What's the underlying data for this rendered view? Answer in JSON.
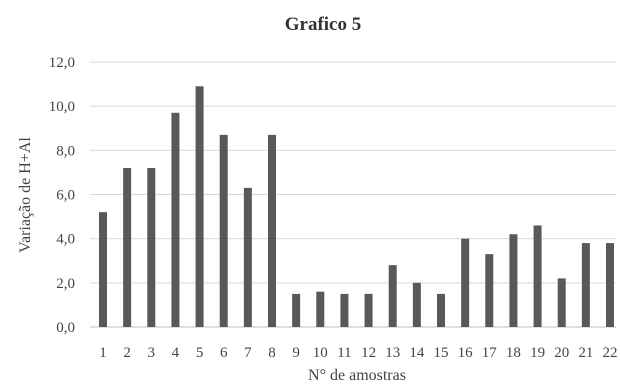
{
  "chart_data": {
    "type": "bar",
    "title": "Grafico 5",
    "xlabel": "N° de amostras",
    "ylabel": "Variação de H+Al",
    "ylim": [
      0,
      12
    ],
    "yticks": [
      "0,0",
      "2,0",
      "4,0",
      "6,0",
      "8,0",
      "10,0",
      "12,0"
    ],
    "categories": [
      "1",
      "2",
      "3",
      "4",
      "5",
      "6",
      "7",
      "8",
      "9",
      "10",
      "11",
      "12",
      "13",
      "14",
      "15",
      "16",
      "17",
      "18",
      "19",
      "20",
      "21",
      "22"
    ],
    "values": [
      5.2,
      7.2,
      7.2,
      9.7,
      10.9,
      8.7,
      6.3,
      8.7,
      1.5,
      1.6,
      1.5,
      1.5,
      2.8,
      2.0,
      1.5,
      4.0,
      3.3,
      4.2,
      4.6,
      2.2,
      3.8,
      3.8
    ],
    "bar_color": "#595959",
    "grid": true,
    "legend": "none"
  }
}
